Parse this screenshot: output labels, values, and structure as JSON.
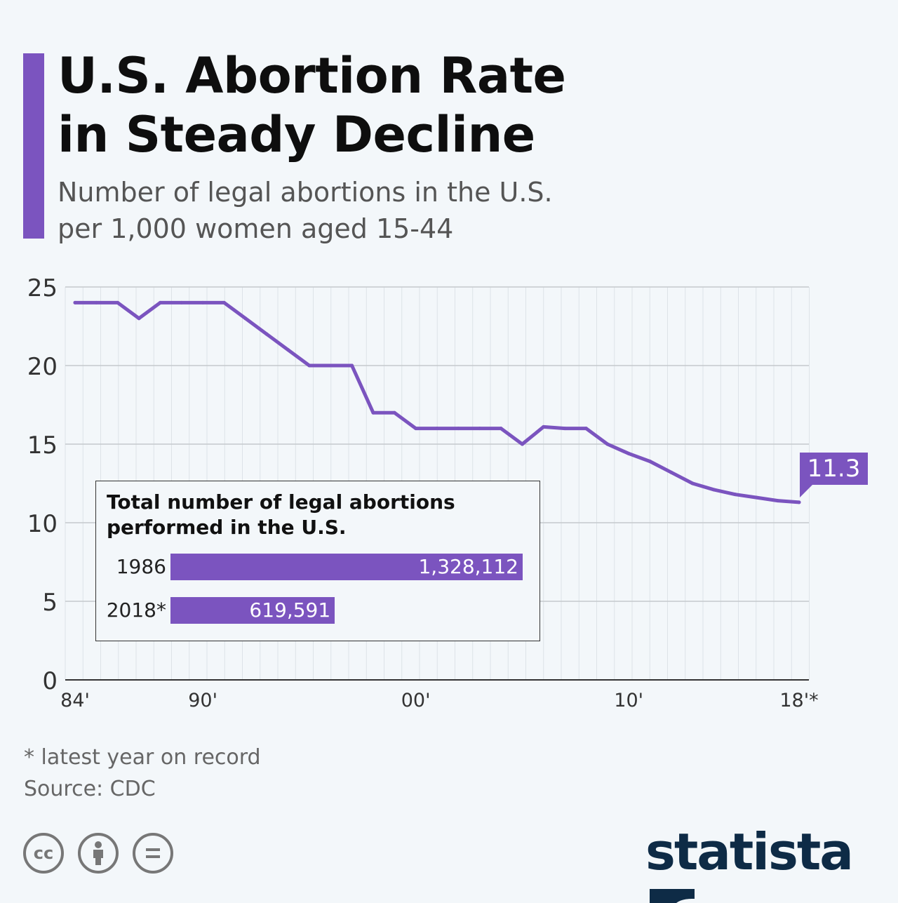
{
  "title": "U.S. Abortion Rate in Steady Decline",
  "title_lines": [
    "U.S. Abortion Rate",
    "in Steady Decline"
  ],
  "subtitle_lines": [
    "Number of legal abortions in the U.S.",
    "per 1,000 women aged 15-44"
  ],
  "accent_color": "#7b54bf",
  "chart_data": {
    "type": "line",
    "x": [
      1984,
      1985,
      1986,
      1987,
      1988,
      1989,
      1990,
      1991,
      1992,
      1993,
      1994,
      1995,
      1996,
      1997,
      1998,
      1999,
      2000,
      2001,
      2002,
      2003,
      2004,
      2005,
      2006,
      2007,
      2008,
      2009,
      2010,
      2011,
      2012,
      2013,
      2014,
      2015,
      2016,
      2017,
      2018
    ],
    "values": [
      24,
      24,
      24,
      23,
      24,
      24,
      24,
      24,
      23,
      22,
      21,
      20,
      20,
      20,
      17,
      17,
      16,
      16,
      16,
      16,
      16,
      15,
      16.1,
      16,
      16,
      15.0,
      14.4,
      13.9,
      13.2,
      12.5,
      12.1,
      11.8,
      11.6,
      11.4,
      11.3
    ],
    "ylim": [
      0,
      25
    ],
    "xlim": [
      1984,
      2018
    ],
    "yticks": [
      "0",
      "5",
      "10",
      "15",
      "20",
      "25"
    ],
    "xticks": [
      {
        "x": 1984,
        "label": "84'"
      },
      {
        "x": 1990,
        "label": "90'"
      },
      {
        "x": 2000,
        "label": "00'"
      },
      {
        "x": 2010,
        "label": "10'"
      },
      {
        "x": 2018,
        "label": "18'*"
      }
    ],
    "grid": true,
    "line_color": "#7b54bf",
    "last_value_label": "11.3"
  },
  "inset": {
    "title_lines": [
      "Total number of legal abortions",
      "performed in the U.S."
    ],
    "bars": [
      {
        "year": "1986",
        "value": 1328112,
        "label": "1,328,112"
      },
      {
        "year": "2018*",
        "value": 619591,
        "label": "619,591"
      }
    ]
  },
  "footnote": "* latest year on record",
  "source": "Source: CDC",
  "license_icons": [
    "cc-icon",
    "attribution-icon",
    "no-derivatives-icon"
  ],
  "brand": "statista"
}
